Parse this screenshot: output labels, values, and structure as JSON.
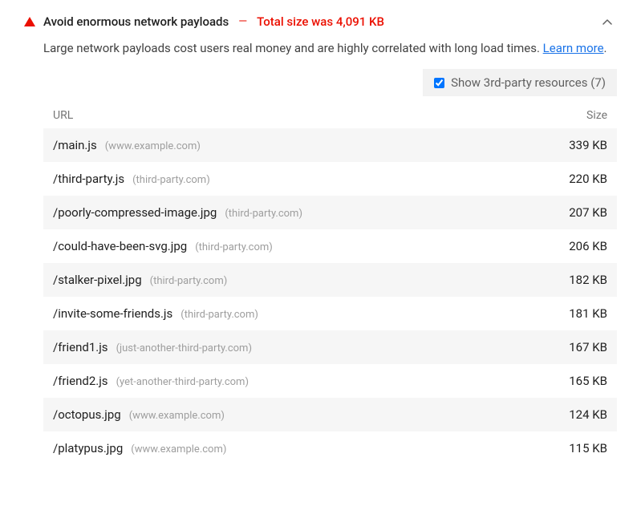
{
  "colors": {
    "fail": "#eb0f00",
    "link": "#1a73e8",
    "muted": "#9e9e9e",
    "stripe": "#f6f6f6",
    "toggle_bg": "#f2f2f2"
  },
  "header": {
    "title": "Avoid enormous network payloads",
    "status": "Total size was 4,091 KB",
    "dash": "—"
  },
  "description": {
    "text": "Large network payloads cost users real money and are highly correlated with long load times. ",
    "learn_more": "Learn more",
    "period": "."
  },
  "third_party": {
    "label": "Show 3rd-party resources (7)",
    "checked": true
  },
  "table": {
    "columns": {
      "url": "URL",
      "size": "Size"
    },
    "rows": [
      {
        "path": "/main.js",
        "domain": "(www.example.com)",
        "size": "339 KB"
      },
      {
        "path": "/third-party.js",
        "domain": "(third-party.com)",
        "size": "220 KB"
      },
      {
        "path": "/poorly-compressed-image.jpg",
        "domain": "(third-party.com)",
        "size": "207 KB"
      },
      {
        "path": "/could-have-been-svg.jpg",
        "domain": "(third-party.com)",
        "size": "206 KB"
      },
      {
        "path": "/stalker-pixel.jpg",
        "domain": "(third-party.com)",
        "size": "182 KB"
      },
      {
        "path": "/invite-some-friends.js",
        "domain": "(third-party.com)",
        "size": "181 KB"
      },
      {
        "path": "/friend1.js",
        "domain": "(just-another-third-party.com)",
        "size": "167 KB"
      },
      {
        "path": "/friend2.js",
        "domain": "(yet-another-third-party.com)",
        "size": "165 KB"
      },
      {
        "path": "/octopus.jpg",
        "domain": "(www.example.com)",
        "size": "124 KB"
      },
      {
        "path": "/platypus.jpg",
        "domain": "(www.example.com)",
        "size": "115 KB"
      }
    ]
  }
}
